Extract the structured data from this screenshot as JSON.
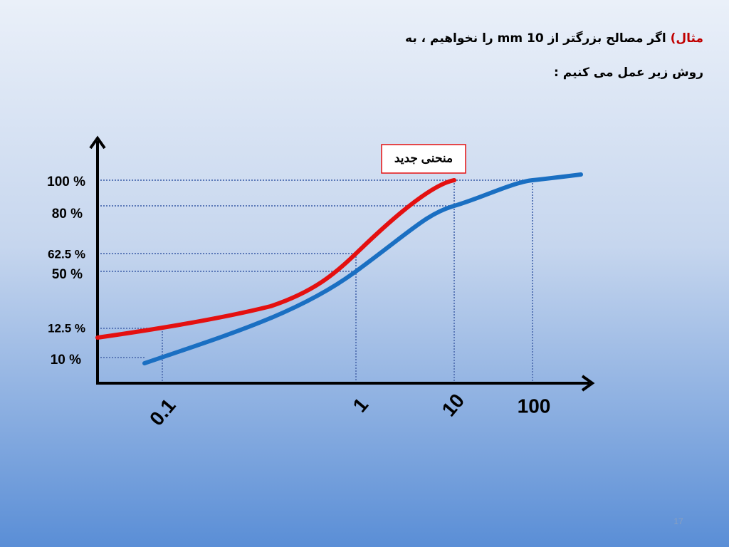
{
  "header": {
    "highlight": "مثال)",
    "line1": "اگر مصالح بزرگتر از 10 mm را نخواهیم ، به",
    "line2": "روش زیر عمل می کنیم :"
  },
  "legend": {
    "label": "منحنی جدید"
  },
  "y_labels": [
    "100 %",
    "80 %",
    "62.5 %",
    "50 %",
    "12.5 %",
    "10 %"
  ],
  "x_labels": [
    "0.1",
    "1",
    "10",
    "100"
  ],
  "footer": {
    "page_number": "17"
  }
}
